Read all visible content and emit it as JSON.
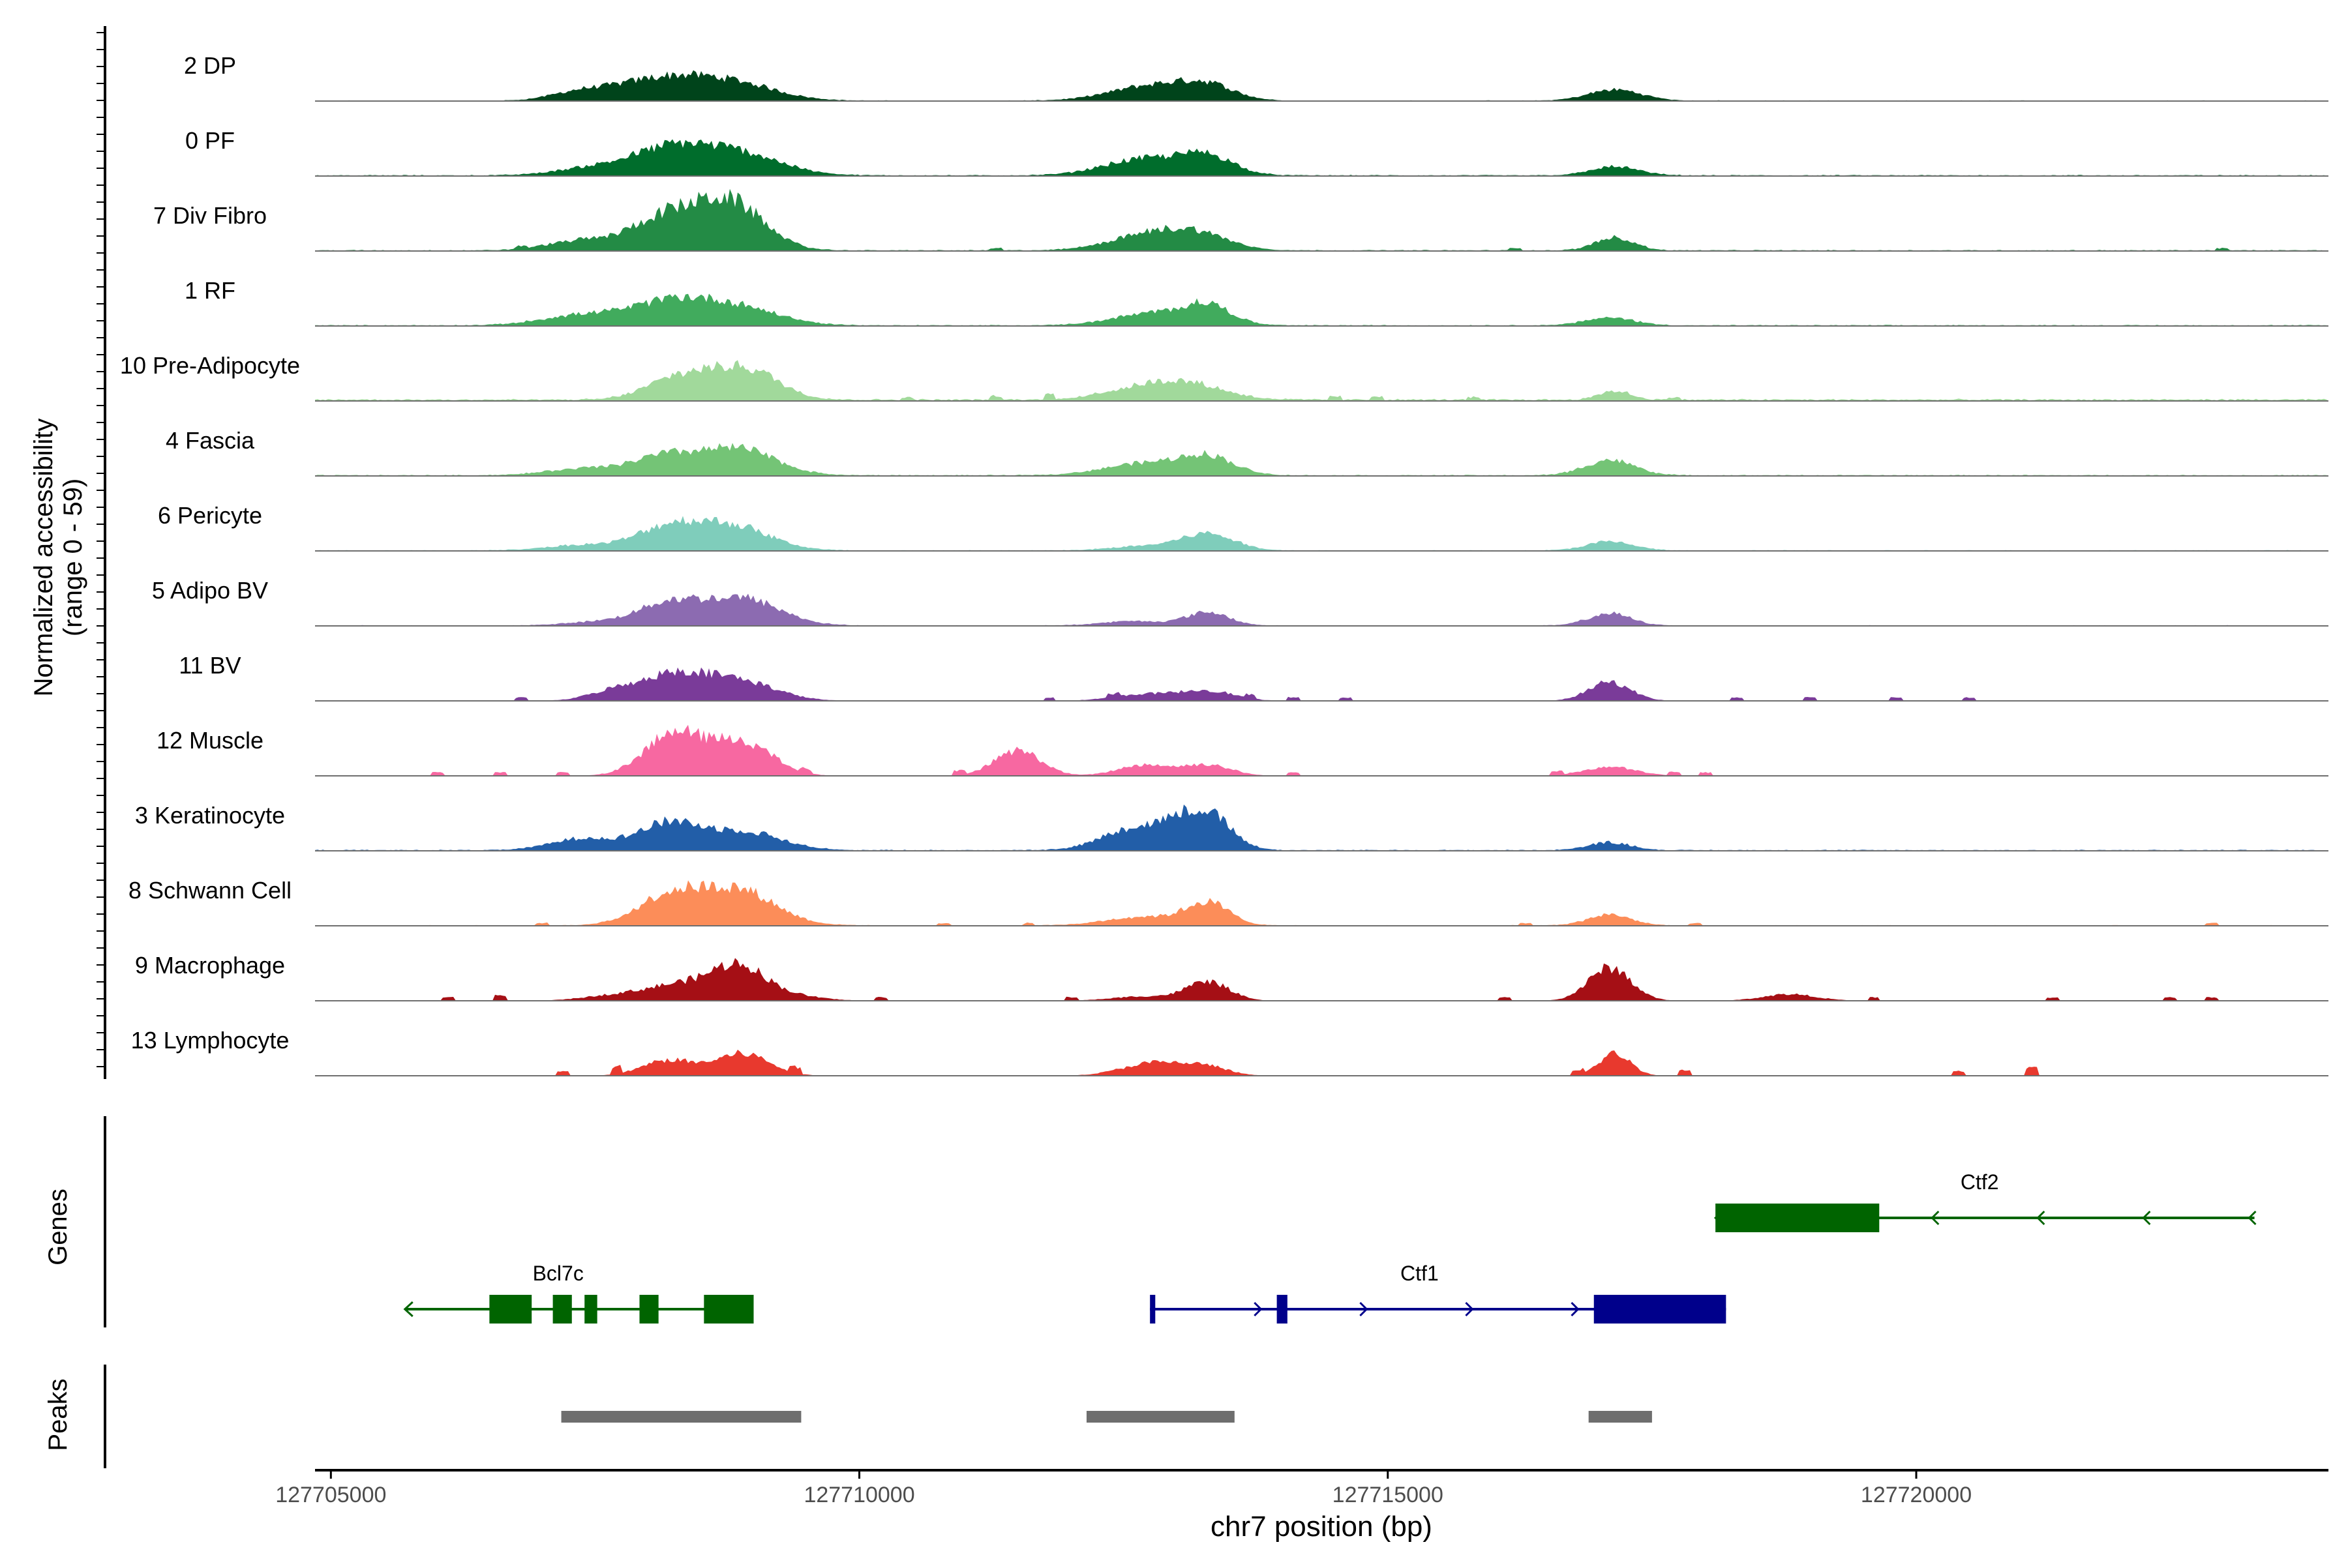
{
  "chart_data": {
    "type": "area",
    "title": "",
    "xlabel": "chr7 position (bp)",
    "ylabel_line1": "Normalized accessibility",
    "ylabel_line2": "(range 0 - 59)",
    "y_range": [
      0,
      59
    ],
    "xlim": [
      127704850,
      127723900
    ],
    "x_ticks": [
      127705000,
      127710000,
      127715000,
      127720000
    ],
    "x_tick_labels": [
      "127705000",
      "127710000",
      "127715000",
      "127720000"
    ],
    "tracks": [
      {
        "name": "2 DP",
        "color": "#00441b",
        "peaks": [
          [
            127707300,
            5,
            250
          ],
          [
            127707700,
            8,
            350
          ],
          [
            127708200,
            15,
            350
          ],
          [
            127708800,
            16,
            400
          ],
          [
            127712800,
            14,
            400
          ],
          [
            127713300,
            11,
            250
          ],
          [
            127717150,
            10,
            250
          ]
        ],
        "baseline": 0.5,
        "blips": []
      },
      {
        "name": "0 PF",
        "color": "#006d2c",
        "peaks": [
          [
            127707500,
            7,
            350
          ],
          [
            127708200,
            22,
            350
          ],
          [
            127708850,
            20,
            400
          ],
          [
            127712700,
            15,
            380
          ],
          [
            127713300,
            16,
            250
          ],
          [
            127717150,
            8,
            220
          ]
        ],
        "baseline": 0.8,
        "blips": []
      },
      {
        "name": "7 Div Fibro",
        "color": "#238b45",
        "peaks": [
          [
            127707300,
            7,
            300
          ],
          [
            127707900,
            9,
            350
          ],
          [
            127708200,
            24,
            280
          ],
          [
            127708600,
            14,
            250
          ],
          [
            127708850,
            34,
            300
          ],
          [
            127712700,
            13,
            350
          ],
          [
            127713200,
            14,
            300
          ],
          [
            127717150,
            12,
            180
          ]
        ],
        "baseline": 0.8,
        "blips": [
          [
            127706800,
            2
          ],
          [
            127711300,
            2
          ],
          [
            127716200,
            2
          ],
          [
            127722900,
            2
          ]
        ]
      },
      {
        "name": "1 RF",
        "color": "#41ab5d",
        "peaks": [
          [
            127707300,
            8,
            350
          ],
          [
            127707800,
            7,
            300
          ],
          [
            127708250,
            16,
            300
          ],
          [
            127708800,
            18,
            400
          ],
          [
            127712800,
            11,
            380
          ],
          [
            127713300,
            16,
            220
          ],
          [
            127717100,
            7,
            230
          ]
        ],
        "baseline": 0.8,
        "blips": []
      },
      {
        "name": "10 Pre-Adipocyte",
        "color": "#a1d99b",
        "peaks": [
          [
            127708200,
            13,
            280
          ],
          [
            127708500,
            12,
            280
          ],
          [
            127708950,
            26,
            300
          ],
          [
            127712600,
            8,
            350
          ],
          [
            127713100,
            14,
            350
          ],
          [
            127717150,
            8,
            150
          ]
        ],
        "baseline": 1.5,
        "blips": [
          [
            127710450,
            2
          ],
          [
            127711300,
            3
          ],
          [
            127711800,
            4
          ],
          [
            127714500,
            3
          ],
          [
            127714900,
            3
          ],
          [
            127715800,
            2
          ],
          [
            127717700,
            2
          ]
        ]
      },
      {
        "name": "4 Fascia",
        "color": "#74c476",
        "peaks": [
          [
            127707400,
            6,
            350
          ],
          [
            127708150,
            16,
            300
          ],
          [
            127708850,
            24,
            350
          ],
          [
            127712700,
            11,
            380
          ],
          [
            127713300,
            16,
            250
          ],
          [
            127717100,
            14,
            230
          ]
        ],
        "baseline": 0.8,
        "blips": []
      },
      {
        "name": "6 Pericyte",
        "color": "#7fcdbb",
        "peaks": [
          [
            127707400,
            5,
            350
          ],
          [
            127708200,
            20,
            300
          ],
          [
            127708800,
            22,
            350
          ],
          [
            127712700,
            4,
            300
          ],
          [
            127713300,
            15,
            250
          ],
          [
            127717100,
            8,
            220
          ]
        ],
        "baseline": 0.6,
        "blips": []
      },
      {
        "name": "5 Adipo BV",
        "color": "#8c6bb1",
        "peaks": [
          [
            127707500,
            3,
            300
          ],
          [
            127708200,
            20,
            300
          ],
          [
            127708900,
            24,
            350
          ],
          [
            127712600,
            4,
            300
          ],
          [
            127713300,
            12,
            200
          ],
          [
            127717100,
            11,
            200
          ]
        ],
        "baseline": 0.5,
        "blips": []
      },
      {
        "name": "11 BV",
        "color": "#7a3b99",
        "peaks": [
          [
            127707700,
            9,
            250
          ],
          [
            127708250,
            22,
            300
          ],
          [
            127708850,
            18,
            350
          ],
          [
            127712700,
            6,
            300
          ],
          [
            127713300,
            9,
            250
          ],
          [
            127717100,
            17,
            200
          ]
        ],
        "baseline": 0,
        "blips": [
          [
            127706800,
            3
          ],
          [
            127711800,
            3
          ],
          [
            127712400,
            3
          ],
          [
            127713700,
            3
          ],
          [
            127714100,
            3
          ],
          [
            127714600,
            3
          ],
          [
            127718300,
            3
          ],
          [
            127719000,
            3
          ],
          [
            127719800,
            3
          ],
          [
            127720500,
            3
          ]
        ]
      },
      {
        "name": "12 Muscle",
        "color": "#f768a1",
        "peaks": [
          [
            127708250,
            38,
            280
          ],
          [
            127708900,
            30,
            280
          ],
          [
            127711500,
            23,
            220
          ],
          [
            127712700,
            10,
            250
          ],
          [
            127713300,
            10,
            220
          ],
          [
            127717100,
            8,
            250
          ]
        ],
        "baseline": 0,
        "blips": [
          [
            127706000,
            3
          ],
          [
            127706600,
            3
          ],
          [
            127707200,
            3
          ],
          [
            127709500,
            3
          ],
          [
            127710950,
            4
          ],
          [
            127714100,
            3
          ],
          [
            127716600,
            3
          ],
          [
            127717700,
            3
          ],
          [
            127718000,
            3
          ]
        ]
      },
      {
        "name": "3 Keratinocyte",
        "color": "#225ea8",
        "peaks": [
          [
            127707400,
            11,
            300
          ],
          [
            127708200,
            24,
            280
          ],
          [
            127708900,
            17,
            350
          ],
          [
            127712600,
            20,
            300
          ],
          [
            127713050,
            20,
            200
          ],
          [
            127713350,
            26,
            200
          ],
          [
            127717100,
            7,
            200
          ]
        ],
        "baseline": 0.8,
        "blips": []
      },
      {
        "name": "8 Schwann Cell",
        "color": "#fc8d59",
        "peaks": [
          [
            127708200,
            26,
            300
          ],
          [
            127708850,
            32,
            350
          ],
          [
            127712700,
            8,
            350
          ],
          [
            127713300,
            20,
            200
          ],
          [
            127717100,
            10,
            200
          ]
        ],
        "baseline": 0.5,
        "blips": [
          [
            127707000,
            2
          ],
          [
            127710800,
            2
          ],
          [
            127711600,
            2
          ],
          [
            127716300,
            2
          ],
          [
            127717900,
            2
          ],
          [
            127722800,
            2
          ]
        ]
      },
      {
        "name": "9 Macrophage",
        "color": "#a50f15",
        "peaks": [
          [
            127707700,
            5,
            300
          ],
          [
            127708300,
            14,
            300
          ],
          [
            127708850,
            30,
            250
          ],
          [
            127709300,
            5,
            300
          ],
          [
            127712700,
            4,
            300
          ],
          [
            127713300,
            17,
            200
          ],
          [
            127717100,
            30,
            200
          ],
          [
            127718800,
            6,
            250
          ]
        ],
        "baseline": 0,
        "blips": [
          [
            127706100,
            3
          ],
          [
            127706600,
            5
          ],
          [
            127710200,
            3
          ],
          [
            127712000,
            3
          ],
          [
            127716100,
            3
          ],
          [
            127719600,
            3
          ],
          [
            127721300,
            3
          ],
          [
            127722400,
            3
          ],
          [
            127722800,
            3
          ]
        ]
      },
      {
        "name": "13 Lymphocyte",
        "color": "#e8392e",
        "peaks": [
          [
            127708200,
            14,
            250
          ],
          [
            127708900,
            20,
            250
          ],
          [
            127712800,
            12,
            300
          ],
          [
            127713300,
            7,
            200
          ],
          [
            127717150,
            20,
            150
          ]
        ],
        "baseline": 0,
        "blips": [
          [
            127707200,
            4
          ],
          [
            127707700,
            6
          ],
          [
            127709400,
            5
          ],
          [
            127716800,
            4
          ],
          [
            127717800,
            5
          ],
          [
            127720400,
            4
          ],
          [
            127721100,
            7
          ]
        ]
      }
    ],
    "genes": [
      {
        "name": "Bcl7c",
        "strand": "-",
        "color": "#006400",
        "row": 2,
        "start": 127705700,
        "end": 127709000,
        "label_x": 127707150,
        "exons": [
          [
            127706500,
            127706900
          ],
          [
            127707100,
            127707280
          ],
          [
            127707400,
            127707520
          ],
          [
            127707920,
            127708100
          ],
          [
            127708530,
            127709000
          ]
        ],
        "arrows": [
          127707950
        ]
      },
      {
        "name": "Ctf1",
        "strand": "+",
        "color": "#00008b",
        "row": 2,
        "start": 127712750,
        "end": 127718200,
        "label_x": 127715300,
        "exons": [
          [
            127712750,
            127712800
          ],
          [
            127713950,
            127714050
          ],
          [
            127716950,
            127718200
          ]
        ],
        "arrows": [
          127713800,
          127714800,
          127715800,
          127716800
        ]
      },
      {
        "name": "Ctf2",
        "strand": "-",
        "color": "#006400",
        "row": 1,
        "start": 127718100,
        "end": 127723200,
        "label_x": 127720600,
        "exons": [
          [
            127718100,
            127719650
          ]
        ],
        "arrows": [
          127720150,
          127721150,
          127722150,
          127723150
        ]
      }
    ],
    "peaks": [
      [
        127707180,
        127709450
      ],
      [
        127712150,
        127713550
      ],
      [
        127716900,
        127717500
      ]
    ],
    "gene_track_label": "Genes",
    "peak_track_label": "Peaks"
  }
}
